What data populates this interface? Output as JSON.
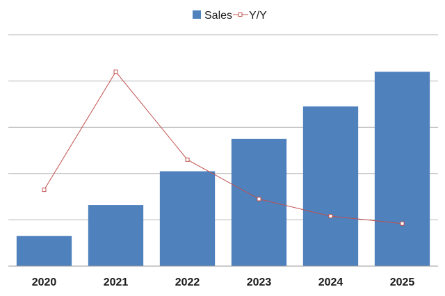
{
  "chart_data": {
    "type": "bar",
    "categories": [
      "2020",
      "2021",
      "2022",
      "2023",
      "2024",
      "2025"
    ],
    "series": [
      {
        "name": "Sales",
        "kind": "bar",
        "axis": "left",
        "color": "#4f81bd",
        "values": [
          0.65,
          1.32,
          2.05,
          2.75,
          3.45,
          4.2
        ]
      },
      {
        "name": "Y/Y",
        "kind": "line",
        "axis": "right",
        "color": "#c0504d",
        "values": [
          1.65,
          4.2,
          2.3,
          1.45,
          1.08,
          0.92
        ]
      }
    ],
    "ylim": [
      0,
      5
    ],
    "y2lim": [
      0,
      5
    ],
    "grid": true,
    "legend": "top",
    "title": "",
    "xlabel": "",
    "ylabel": ""
  }
}
